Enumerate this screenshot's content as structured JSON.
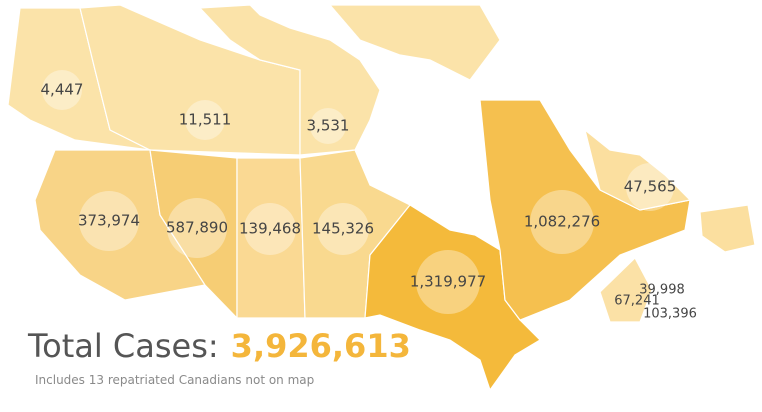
{
  "regions": [
    {
      "name": "yukon",
      "label": "4,447"
    },
    {
      "name": "northwest-territories",
      "label": "11,511"
    },
    {
      "name": "nunavut",
      "label": "3,531"
    },
    {
      "name": "british-columbia",
      "label": "373,974"
    },
    {
      "name": "alberta",
      "label": "587,890"
    },
    {
      "name": "saskatchewan",
      "label": "139,468"
    },
    {
      "name": "manitoba",
      "label": "145,326"
    },
    {
      "name": "ontario",
      "label": "1,319,977"
    },
    {
      "name": "quebec",
      "label": "1,082,276"
    },
    {
      "name": "newfoundland-and-labrador",
      "label": "47,565"
    },
    {
      "name": "prince-edward-island",
      "label": "39,998"
    },
    {
      "name": "new-brunswick",
      "label": "67,241"
    },
    {
      "name": "nova-scotia",
      "label": "103,396"
    }
  ],
  "total": {
    "label": "Total Cases:",
    "value": "3,926,613"
  },
  "note": "Includes 13 repatriated Canadians not on map"
}
